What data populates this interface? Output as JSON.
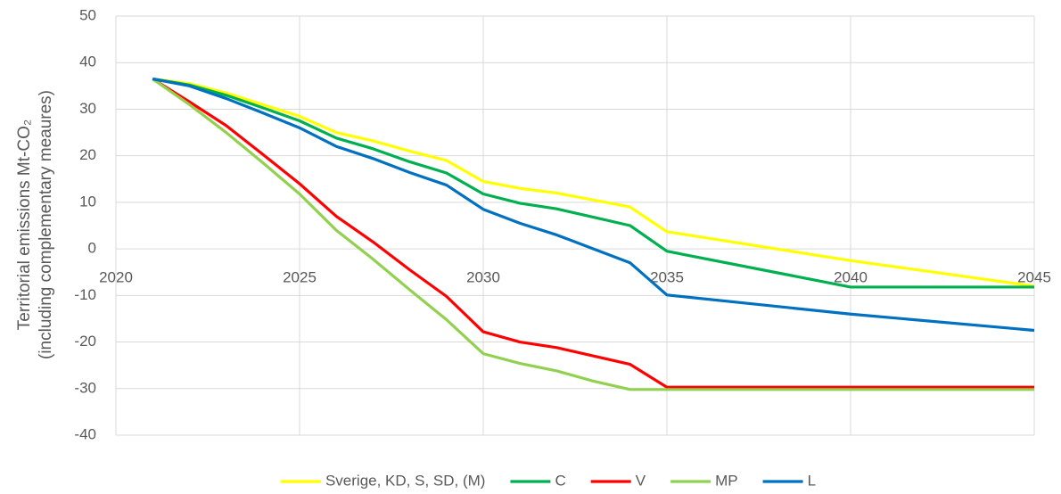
{
  "chart_data": {
    "type": "line",
    "ylabel": [
      "Territorial emissions Mt-CO₂",
      "(including complementary meaures)"
    ],
    "x": [
      2021,
      2022,
      2023,
      2024,
      2025,
      2026,
      2027,
      2028,
      2029,
      2030,
      2031,
      2032,
      2033,
      2034,
      2035,
      2040,
      2045
    ],
    "series": [
      {
        "name": "Sverige, KD, S, SD, (M)",
        "color": "#ffff00",
        "values": [
          36.5,
          35.5,
          33.5,
          31,
          28.5,
          25,
          23.2,
          21,
          19,
          14.5,
          13,
          12,
          10.5,
          9,
          3.7,
          -2.5,
          -8
        ]
      },
      {
        "name": "C",
        "color": "#00b050",
        "values": [
          36.5,
          35.2,
          33,
          30.3,
          27.5,
          23.8,
          21.5,
          18.7,
          16.3,
          11.8,
          9.8,
          8.6,
          6.8,
          5,
          -0.5,
          -8.2,
          -8.2
        ]
      },
      {
        "name": "V",
        "color": "#ff0000",
        "values": [
          36.5,
          31.6,
          26.5,
          20.3,
          14,
          7,
          1.5,
          -4.5,
          -10.2,
          -17.8,
          -20,
          -21.2,
          -23,
          -24.8,
          -29.7,
          -29.7,
          -29.7
        ]
      },
      {
        "name": "MP",
        "color": "#92d050",
        "values": [
          36.5,
          31,
          25,
          18.5,
          11.8,
          4,
          -2.2,
          -8.8,
          -15.2,
          -22.5,
          -24.6,
          -26.2,
          -28.4,
          -30.2,
          -30.2,
          -30.2,
          -30.2
        ]
      },
      {
        "name": "L",
        "color": "#0070c0",
        "values": [
          36.5,
          35,
          32.3,
          29.2,
          26,
          22,
          19.4,
          16.4,
          13.7,
          8.5,
          5.5,
          3,
          0,
          -3,
          -9.9,
          -14,
          -17.5
        ]
      }
    ],
    "xlim": [
      2020,
      2045
    ],
    "xticks": [
      2020,
      2025,
      2030,
      2035,
      2040,
      2045
    ],
    "ylim": [
      -40,
      50
    ],
    "yticks": [
      -40,
      -30,
      -20,
      -10,
      0,
      10,
      20,
      30,
      40,
      50
    ],
    "grid": true,
    "legend": "bottom"
  }
}
